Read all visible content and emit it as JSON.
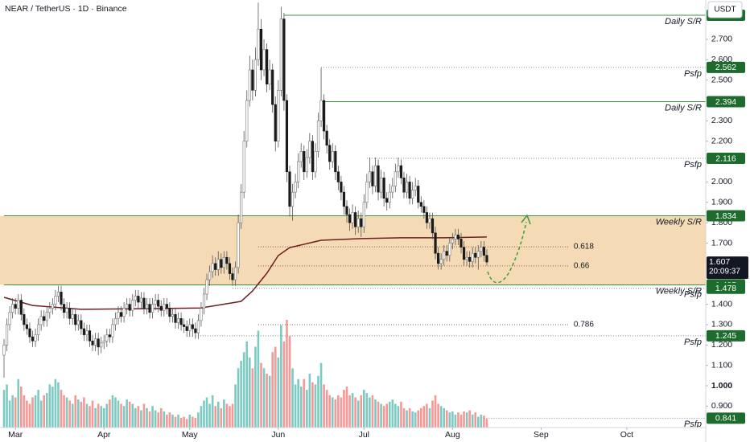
{
  "chart_data": {
    "type": "candlestick",
    "title": "NEAR / TetherUS · 1D · Binance",
    "currency": "USDT",
    "ylim": [
      0.795,
      2.893
    ],
    "yticks": [
      {
        "value": 0.9,
        "label": "0.900"
      },
      {
        "value": 1.0,
        "label": "1.000"
      },
      {
        "value": 1.1,
        "label": "1.100"
      },
      {
        "value": 1.2,
        "label": "1.200"
      },
      {
        "value": 1.3,
        "label": "1.300"
      },
      {
        "value": 1.4,
        "label": "1.400"
      },
      {
        "value": 1.7,
        "label": "1.700"
      },
      {
        "value": 1.8,
        "label": "1.800"
      },
      {
        "value": 1.9,
        "label": "1.900"
      },
      {
        "value": 2.0,
        "label": "2.000"
      },
      {
        "value": 2.2,
        "label": "2.200"
      },
      {
        "value": 2.3,
        "label": "2.300"
      },
      {
        "value": 2.5,
        "label": "2.500"
      },
      {
        "value": 2.6,
        "label": "2.600"
      },
      {
        "value": 2.7,
        "label": "2.700"
      }
    ],
    "xticks": [
      {
        "value": 4,
        "label": "Mar"
      },
      {
        "value": 35,
        "label": "Apr"
      },
      {
        "value": 65,
        "label": "May"
      },
      {
        "value": 96,
        "label": "Jun"
      },
      {
        "value": 126,
        "label": "Jul"
      },
      {
        "value": 157,
        "label": "Aug"
      },
      {
        "value": 188,
        "label": "Sep"
      },
      {
        "value": 218,
        "label": "Oct"
      }
    ],
    "up_color": "#ffffff",
    "down_color": "#1a1a1a",
    "volume_up_color": "#26a69a",
    "volume_down_color": "#ef5350",
    "candles": [
      [
        1.15,
        1.23,
        1.04,
        1.2
      ],
      [
        1.2,
        1.33,
        1.17,
        1.3
      ],
      [
        1.3,
        1.39,
        1.27,
        1.36
      ],
      [
        1.36,
        1.43,
        1.33,
        1.4
      ],
      [
        1.4,
        1.43,
        1.35,
        1.38
      ],
      [
        1.38,
        1.45,
        1.35,
        1.42
      ],
      [
        1.42,
        1.45,
        1.32,
        1.35
      ],
      [
        1.35,
        1.38,
        1.27,
        1.3
      ],
      [
        1.3,
        1.33,
        1.25,
        1.28
      ],
      [
        1.28,
        1.31,
        1.21,
        1.24
      ],
      [
        1.24,
        1.27,
        1.19,
        1.22
      ],
      [
        1.22,
        1.28,
        1.19,
        1.25
      ],
      [
        1.25,
        1.33,
        1.22,
        1.3
      ],
      [
        1.3,
        1.37,
        1.27,
        1.34
      ],
      [
        1.34,
        1.37,
        1.29,
        1.32
      ],
      [
        1.32,
        1.39,
        1.29,
        1.36
      ],
      [
        1.36,
        1.41,
        1.33,
        1.38
      ],
      [
        1.38,
        1.43,
        1.35,
        1.4
      ],
      [
        1.4,
        1.47,
        1.37,
        1.44
      ],
      [
        1.44,
        1.49,
        1.41,
        1.46
      ],
      [
        1.46,
        1.49,
        1.37,
        1.4
      ],
      [
        1.4,
        1.43,
        1.33,
        1.36
      ],
      [
        1.36,
        1.41,
        1.33,
        1.38
      ],
      [
        1.38,
        1.41,
        1.3,
        1.33
      ],
      [
        1.33,
        1.38,
        1.3,
        1.35
      ],
      [
        1.35,
        1.38,
        1.27,
        1.3
      ],
      [
        1.3,
        1.35,
        1.27,
        1.32
      ],
      [
        1.32,
        1.35,
        1.25,
        1.28
      ],
      [
        1.28,
        1.31,
        1.22,
        1.25
      ],
      [
        1.25,
        1.3,
        1.22,
        1.27
      ],
      [
        1.27,
        1.3,
        1.19,
        1.22
      ],
      [
        1.22,
        1.25,
        1.17,
        1.2
      ],
      [
        1.2,
        1.26,
        1.17,
        1.23
      ],
      [
        1.23,
        1.26,
        1.15,
        1.19
      ],
      [
        1.19,
        1.24,
        1.16,
        1.21
      ],
      [
        1.21,
        1.25,
        1.18,
        1.22
      ],
      [
        1.22,
        1.28,
        1.19,
        1.25
      ],
      [
        1.25,
        1.28,
        1.21,
        1.24
      ],
      [
        1.24,
        1.33,
        1.21,
        1.3
      ],
      [
        1.3,
        1.36,
        1.27,
        1.33
      ],
      [
        1.33,
        1.39,
        1.3,
        1.36
      ],
      [
        1.36,
        1.39,
        1.31,
        1.34
      ],
      [
        1.34,
        1.41,
        1.31,
        1.38
      ],
      [
        1.38,
        1.43,
        1.35,
        1.4
      ],
      [
        1.4,
        1.43,
        1.34,
        1.37
      ],
      [
        1.37,
        1.45,
        1.34,
        1.42
      ],
      [
        1.42,
        1.47,
        1.39,
        1.44
      ],
      [
        1.44,
        1.47,
        1.38,
        1.41
      ],
      [
        1.41,
        1.46,
        1.38,
        1.43
      ],
      [
        1.43,
        1.46,
        1.35,
        1.38
      ],
      [
        1.38,
        1.43,
        1.35,
        1.4
      ],
      [
        1.4,
        1.43,
        1.33,
        1.36
      ],
      [
        1.36,
        1.43,
        1.33,
        1.4
      ],
      [
        1.4,
        1.45,
        1.37,
        1.42
      ],
      [
        1.42,
        1.45,
        1.36,
        1.39
      ],
      [
        1.39,
        1.42,
        1.34,
        1.37
      ],
      [
        1.37,
        1.43,
        1.34,
        1.4
      ],
      [
        1.4,
        1.43,
        1.35,
        1.38
      ],
      [
        1.38,
        1.41,
        1.31,
        1.34
      ],
      [
        1.34,
        1.38,
        1.31,
        1.35
      ],
      [
        1.35,
        1.38,
        1.28,
        1.31
      ],
      [
        1.31,
        1.36,
        1.28,
        1.33
      ],
      [
        1.33,
        1.36,
        1.27,
        1.3
      ],
      [
        1.3,
        1.33,
        1.26,
        1.29
      ],
      [
        1.29,
        1.32,
        1.24,
        1.27
      ],
      [
        1.27,
        1.33,
        1.24,
        1.3
      ],
      [
        1.3,
        1.33,
        1.24,
        1.28
      ],
      [
        1.28,
        1.31,
        1.23,
        1.26
      ],
      [
        1.26,
        1.35,
        1.23,
        1.32
      ],
      [
        1.32,
        1.41,
        1.29,
        1.38
      ],
      [
        1.38,
        1.48,
        1.35,
        1.45
      ],
      [
        1.45,
        1.55,
        1.42,
        1.52
      ],
      [
        1.52,
        1.59,
        1.49,
        1.56
      ],
      [
        1.56,
        1.64,
        1.53,
        1.6
      ],
      [
        1.6,
        1.63,
        1.54,
        1.57
      ],
      [
        1.57,
        1.66,
        1.54,
        1.62
      ],
      [
        1.62,
        1.65,
        1.55,
        1.58
      ],
      [
        1.58,
        1.66,
        1.55,
        1.63
      ],
      [
        1.63,
        1.66,
        1.57,
        1.6
      ],
      [
        1.6,
        1.63,
        1.52,
        1.55
      ],
      [
        1.55,
        1.58,
        1.49,
        1.52
      ],
      [
        1.52,
        1.61,
        1.49,
        1.58
      ],
      [
        1.58,
        1.84,
        1.55,
        1.8
      ],
      [
        1.8,
        1.99,
        1.77,
        1.95
      ],
      [
        1.95,
        2.25,
        1.92,
        2.2
      ],
      [
        2.2,
        2.45,
        2.17,
        2.4
      ],
      [
        2.4,
        2.62,
        2.37,
        2.55
      ],
      [
        2.55,
        2.6,
        2.4,
        2.45
      ],
      [
        2.45,
        2.66,
        2.42,
        2.6
      ],
      [
        2.6,
        2.88,
        2.57,
        2.75
      ],
      [
        2.75,
        2.8,
        2.5,
        2.55
      ],
      [
        2.55,
        2.7,
        2.52,
        2.65
      ],
      [
        2.65,
        2.68,
        2.44,
        2.48
      ],
      [
        2.48,
        2.6,
        2.45,
        2.55
      ],
      [
        2.55,
        2.58,
        2.34,
        2.38
      ],
      [
        2.38,
        2.42,
        2.15,
        2.2
      ],
      [
        2.2,
        2.5,
        2.17,
        2.45
      ],
      [
        2.45,
        2.86,
        2.42,
        2.8
      ],
      [
        2.8,
        2.83,
        2.35,
        2.4
      ],
      [
        2.4,
        2.43,
        2.0,
        2.05
      ],
      [
        2.05,
        2.08,
        1.83,
        1.88
      ],
      [
        1.88,
        1.99,
        1.81,
        1.95
      ],
      [
        1.95,
        2.04,
        1.92,
        2.0
      ],
      [
        2.0,
        2.14,
        1.97,
        2.1
      ],
      [
        2.1,
        2.19,
        2.07,
        2.15
      ],
      [
        2.15,
        2.18,
        2.01,
        2.05
      ],
      [
        2.05,
        2.16,
        2.02,
        2.12
      ],
      [
        2.12,
        2.24,
        2.09,
        2.2
      ],
      [
        2.2,
        2.23,
        2.01,
        2.05
      ],
      [
        2.05,
        2.19,
        2.02,
        2.15
      ],
      [
        2.15,
        2.34,
        2.12,
        2.3
      ],
      [
        2.3,
        2.56,
        2.27,
        2.4
      ],
      [
        2.4,
        2.43,
        2.21,
        2.25
      ],
      [
        2.25,
        2.28,
        2.14,
        2.18
      ],
      [
        2.18,
        2.21,
        2.06,
        2.1
      ],
      [
        2.1,
        2.19,
        2.07,
        2.15
      ],
      [
        2.15,
        2.18,
        2.01,
        2.05
      ],
      [
        2.05,
        2.08,
        1.96,
        2.0
      ],
      [
        2.0,
        2.03,
        1.91,
        1.95
      ],
      [
        1.95,
        1.98,
        1.84,
        1.88
      ],
      [
        1.88,
        1.91,
        1.8,
        1.84
      ],
      [
        1.84,
        1.87,
        1.76,
        1.8
      ],
      [
        1.8,
        1.89,
        1.77,
        1.85
      ],
      [
        1.85,
        1.88,
        1.74,
        1.78
      ],
      [
        1.78,
        1.86,
        1.75,
        1.82
      ],
      [
        1.82,
        1.85,
        1.73,
        1.78
      ],
      [
        1.78,
        1.94,
        1.75,
        1.9
      ],
      [
        1.9,
        2.04,
        1.87,
        2.0
      ],
      [
        2.0,
        2.12,
        1.97,
        2.05
      ],
      [
        2.05,
        2.08,
        1.94,
        1.98
      ],
      [
        1.98,
        2.12,
        1.95,
        2.08
      ],
      [
        2.08,
        2.11,
        1.91,
        1.95
      ],
      [
        1.95,
        2.06,
        1.92,
        2.02
      ],
      [
        2.02,
        2.05,
        1.88,
        1.92
      ],
      [
        1.92,
        1.95,
        1.86,
        1.9
      ],
      [
        1.9,
        1.99,
        1.87,
        1.95
      ],
      [
        1.95,
        2.02,
        1.92,
        1.98
      ],
      [
        1.98,
        2.09,
        1.95,
        2.05
      ],
      [
        2.05,
        2.12,
        2.02,
        2.08
      ],
      [
        2.08,
        2.11,
        1.99,
        2.02
      ],
      [
        2.02,
        2.05,
        1.92,
        1.95
      ],
      [
        1.95,
        2.04,
        1.92,
        2.0
      ],
      [
        2.0,
        2.03,
        1.89,
        1.92
      ],
      [
        1.92,
        2.0,
        1.89,
        1.96
      ],
      [
        1.96,
        2.02,
        1.93,
        1.98
      ],
      [
        1.98,
        2.01,
        1.87,
        1.9
      ],
      [
        1.9,
        1.93,
        1.85,
        1.88
      ],
      [
        1.88,
        1.91,
        1.82,
        1.85
      ],
      [
        1.85,
        1.88,
        1.77,
        1.8
      ],
      [
        1.8,
        1.85,
        1.77,
        1.82
      ],
      [
        1.82,
        1.85,
        1.72,
        1.75
      ],
      [
        1.75,
        1.78,
        1.62,
        1.65
      ],
      [
        1.65,
        1.68,
        1.57,
        1.6
      ],
      [
        1.6,
        1.65,
        1.57,
        1.62
      ],
      [
        1.62,
        1.69,
        1.59,
        1.66
      ],
      [
        1.66,
        1.69,
        1.61,
        1.64
      ],
      [
        1.64,
        1.73,
        1.61,
        1.7
      ],
      [
        1.7,
        1.75,
        1.67,
        1.72
      ],
      [
        1.72,
        1.77,
        1.69,
        1.74
      ],
      [
        1.74,
        1.77,
        1.69,
        1.72
      ],
      [
        1.72,
        1.75,
        1.65,
        1.68
      ],
      [
        1.68,
        1.71,
        1.59,
        1.62
      ],
      [
        1.62,
        1.66,
        1.59,
        1.63
      ],
      [
        1.63,
        1.66,
        1.58,
        1.61
      ],
      [
        1.61,
        1.68,
        1.58,
        1.65
      ],
      [
        1.65,
        1.68,
        1.6,
        1.63
      ],
      [
        1.63,
        1.69,
        1.57,
        1.66
      ],
      [
        1.66,
        1.71,
        1.63,
        1.68
      ],
      [
        1.68,
        1.71,
        1.61,
        1.64
      ],
      [
        1.64,
        1.67,
        1.59,
        1.607
      ]
    ],
    "volume": [
      35,
      40,
      25,
      30,
      28,
      45,
      38,
      30,
      25,
      22,
      28,
      30,
      35,
      25,
      30,
      32,
      40,
      38,
      45,
      42,
      35,
      30,
      28,
      25,
      22,
      30,
      26,
      24,
      28,
      22,
      20,
      25,
      18,
      22,
      20,
      18,
      22,
      26,
      30,
      28,
      25,
      22,
      20,
      26,
      24,
      22,
      18,
      20,
      16,
      22,
      18,
      15,
      20,
      16,
      14,
      18,
      15,
      12,
      14,
      12,
      10,
      12,
      9,
      10,
      8,
      12,
      10,
      9,
      14,
      20,
      25,
      28,
      22,
      30,
      20,
      24,
      18,
      26,
      22,
      20,
      22,
      40,
      55,
      62,
      70,
      80,
      65,
      55,
      75,
      90,
      60,
      55,
      50,
      48,
      70,
      75,
      65,
      95,
      80,
      100,
      85,
      55,
      40,
      45,
      38,
      45,
      35,
      50,
      42,
      40,
      48,
      60,
      40,
      35,
      30,
      28,
      26,
      30,
      28,
      35,
      38,
      30,
      32,
      28,
      25,
      30,
      35,
      32,
      28,
      30,
      26,
      24,
      22,
      20,
      22,
      24,
      26,
      22,
      20,
      24,
      18,
      16,
      18,
      15,
      14,
      16,
      18,
      20,
      22,
      18,
      25,
      30,
      22,
      20,
      18,
      16,
      14,
      15,
      12,
      14,
      12,
      15,
      14,
      16,
      12,
      14,
      10,
      12,
      11,
      8
    ],
    "ma": {
      "color": "#6d1f1f",
      "x": [
        0,
        10,
        27,
        55,
        69,
        83,
        87,
        92,
        96,
        100,
        111,
        125,
        139,
        154,
        169
      ],
      "values": [
        1.434,
        1.394,
        1.375,
        1.379,
        1.382,
        1.414,
        1.465,
        1.552,
        1.639,
        1.678,
        1.714,
        1.722,
        1.726,
        1.726,
        1.73
      ]
    },
    "zone": [
      1.495,
      1.834
    ],
    "zone_color": "#f3d5a8",
    "levels": [
      {
        "label": "Daily S/R",
        "price": 2.818,
        "from": 98,
        "style": "solid",
        "color": "#3f8f3f"
      },
      {
        "label": "Psfp",
        "price": 2.562,
        "from": 111,
        "style": "dotted",
        "color": "#888888"
      },
      {
        "label": "Daily S/R",
        "price": 2.394,
        "from": 111,
        "style": "solid",
        "color": "#3f8f3f"
      },
      {
        "label": "Psfp",
        "price": 2.116,
        "from": 127,
        "style": "dotted",
        "color": "#888888"
      },
      {
        "label": "Weekly S/R",
        "price": 1.834,
        "from": 0,
        "style": "solid",
        "color": "#3f8f3f"
      },
      {
        "label": "Weekly S/R",
        "price": 1.495,
        "from": 0,
        "style": "solid",
        "color": "#3f8f3f"
      },
      {
        "label": "Psfp",
        "price": 1.478,
        "from": 80,
        "style": "dotted",
        "color": "#888888"
      },
      {
        "label": "Psfp",
        "price": 1.245,
        "from": 67,
        "style": "dotted",
        "color": "#888888"
      },
      {
        "label": "Psfp",
        "price": 0.841,
        "from": 168,
        "style": "dotted",
        "color": "#888888"
      }
    ],
    "tag_color": "#1e6b2e",
    "fibs": [
      {
        "ratio": 0.618,
        "price": 1.682
      },
      {
        "ratio": 0.66,
        "price": 1.588
      },
      {
        "ratio": 0.786,
        "price": 1.3
      }
    ],
    "fib_from": 89,
    "fib_to": 198,
    "last_price": 1.607,
    "countdown": "20:09:37"
  }
}
